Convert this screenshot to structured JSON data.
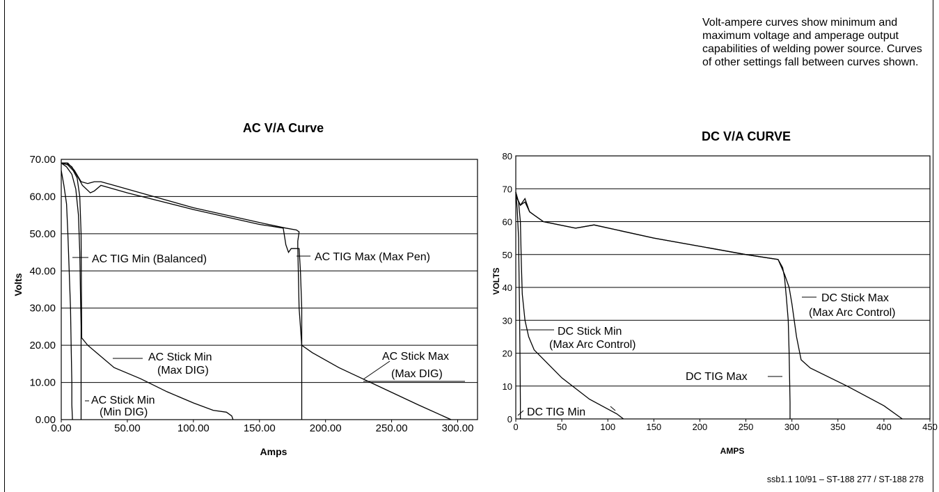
{
  "page": {
    "description_note": "Volt-ampere curves show minimum and maximum voltage and amperage output capabilities of welding power source. Curves of other settings fall between curves shown.",
    "footer": "ssb1.1 10/91 – ST-188 277 / ST-188 278"
  },
  "chart_data": [
    {
      "type": "line",
      "title": "AC V/A Curve",
      "xlabel": "Amps",
      "ylabel": "Volts",
      "xlim": [
        0,
        315
      ],
      "ylim": [
        0,
        70
      ],
      "x_ticks": [
        "0.00",
        "50.00",
        "100.00",
        "150.00",
        "200.00",
        "250.00",
        "300.00"
      ],
      "x_tick_values": [
        0,
        50,
        100,
        150,
        200,
        250,
        300
      ],
      "y_ticks": [
        "0.00",
        "10.00",
        "20.00",
        "30.00",
        "40.00",
        "50.00",
        "60.00",
        "70.00"
      ],
      "y_tick_values": [
        0,
        10,
        20,
        30,
        40,
        50,
        60,
        70
      ],
      "grid": "horizontal",
      "series": [
        {
          "name": "AC TIG Min (Balanced)",
          "x": [
            0,
            2,
            4,
            5,
            6,
            7,
            7.5,
            8,
            8,
            8.5
          ],
          "y": [
            67,
            63,
            58,
            50,
            40,
            30,
            20,
            10,
            4,
            0
          ]
        },
        {
          "name": "AC Stick Min (Min DIG)",
          "x": [
            0,
            4,
            8,
            11,
            13,
            14,
            14.5,
            15,
            15,
            15
          ],
          "y": [
            69,
            68,
            66,
            62,
            55,
            45,
            35,
            25,
            10,
            0
          ]
        },
        {
          "name": "AC Stick Min (Max DIG)",
          "x": [
            0,
            5,
            9,
            12,
            14,
            15,
            15.5,
            20,
            40,
            60,
            80,
            100,
            115,
            125,
            129,
            130
          ],
          "y": [
            69,
            68.5,
            67,
            65,
            60,
            50,
            22,
            20,
            14,
            11,
            7.5,
            4.5,
            2.5,
            2,
            1,
            0
          ]
        },
        {
          "name": "AC TIG Max (Max Pen)",
          "x": [
            0,
            4,
            8,
            13,
            16,
            22,
            25,
            30,
            50,
            100,
            150,
            168,
            170,
            172,
            174,
            176,
            178,
            180,
            181,
            182,
            182,
            182
          ],
          "y": [
            69,
            69,
            68,
            65,
            63,
            61,
            61.5,
            63,
            61,
            56.5,
            52.5,
            51.5,
            47,
            45,
            46,
            46,
            46,
            46,
            40,
            30,
            10,
            0
          ]
        },
        {
          "name": "AC Stick Max (Max DIG)",
          "x": [
            0,
            5,
            10,
            15,
            20,
            25,
            30,
            40,
            60,
            100,
            150,
            170,
            178,
            180,
            179,
            179,
            180,
            182,
            190,
            210,
            240,
            270,
            295
          ],
          "y": [
            69,
            69,
            67,
            64,
            63.5,
            64,
            64,
            63,
            61,
            57,
            53,
            51.5,
            51,
            50.5,
            48,
            46.5,
            30,
            20,
            18,
            14,
            9,
            4,
            0
          ]
        }
      ],
      "annotations": [
        {
          "line1": "AC TIG Min (Balanced)",
          "line2": ""
        },
        {
          "line1": "AC TIG Max (Max Pen)",
          "line2": ""
        },
        {
          "line1": "AC Stick Min",
          "line2": "(Max DIG)"
        },
        {
          "line1": "AC Stick Max",
          "line2": "(Max DIG)"
        },
        {
          "line1": "AC Stick Min",
          "line2": "(Min DIG)"
        }
      ]
    },
    {
      "type": "line",
      "title": "DC V/A CURVE",
      "xlabel": "AMPS",
      "ylabel": "VOLTS",
      "xlim": [
        0,
        450
      ],
      "ylim": [
        0,
        80
      ],
      "x_ticks": [
        "0",
        "50",
        "100",
        "150",
        "200",
        "250",
        "300",
        "350",
        "400",
        "450"
      ],
      "x_tick_values": [
        0,
        50,
        100,
        150,
        200,
        250,
        300,
        350,
        400,
        450
      ],
      "y_ticks": [
        "0",
        "10",
        "20",
        "30",
        "40",
        "50",
        "60",
        "70",
        "80"
      ],
      "y_tick_values": [
        0,
        10,
        20,
        30,
        40,
        50,
        60,
        70,
        80
      ],
      "grid": "horizontal",
      "series": [
        {
          "name": "DC TIG Min",
          "x": [
            0,
            1.5,
            3,
            3.5,
            4,
            4.5,
            5,
            5
          ],
          "y": [
            69,
            64,
            55,
            45,
            35,
            20,
            5,
            0
          ]
        },
        {
          "name": "DC Stick Min (Max Arc Control)",
          "x": [
            0,
            3,
            5,
            6,
            7,
            10,
            14,
            20,
            50,
            80,
            100,
            110,
            117
          ],
          "y": [
            69,
            66,
            60,
            48,
            38,
            30,
            25,
            21,
            12.5,
            6,
            3,
            1.5,
            0
          ]
        },
        {
          "name": "DC TIG Max",
          "x": [
            0,
            5,
            10,
            15,
            20,
            30,
            65,
            85,
            150,
            250,
            285,
            290,
            292,
            294,
            296,
            297,
            298,
            298
          ],
          "y": [
            68,
            65,
            66,
            63,
            62,
            60,
            58,
            59,
            55,
            50,
            48.5,
            46,
            43,
            37,
            30,
            20,
            5,
            0
          ]
        },
        {
          "name": "DC Stick Max (Max Arc Control)",
          "x": [
            0,
            5,
            10,
            15,
            20,
            30,
            65,
            85,
            150,
            250,
            285,
            292,
            297,
            300,
            305,
            310,
            320,
            360,
            400,
            420
          ],
          "y": [
            68,
            65,
            67,
            63,
            62,
            60,
            58,
            59,
            55,
            50,
            48.5,
            44,
            40,
            35,
            25,
            18,
            15.5,
            10,
            4,
            0
          ]
        }
      ],
      "annotations": [
        {
          "line1": "DC Stick Max",
          "line2": "(Max Arc Control)"
        },
        {
          "line1": "DC Stick Min",
          "line2": "(Max Arc Control)"
        },
        {
          "line1": "DC TIG Max",
          "line2": ""
        },
        {
          "line1": "DC TIG Min",
          "line2": ""
        }
      ]
    }
  ]
}
